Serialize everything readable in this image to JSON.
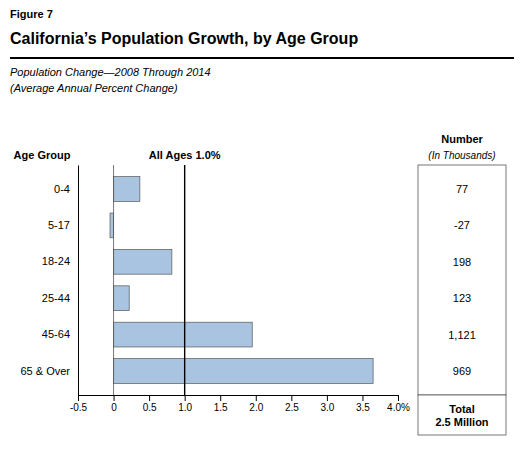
{
  "chart_data": {
    "type": "bar",
    "orientation": "horizontal",
    "figure_label": "Figure 7",
    "title": "California’s Population Growth, by Age Group",
    "subtitle": [
      "Population Change—2008 Through 2014",
      "(Average Annual Percent Change)"
    ],
    "y_label": "Age Group",
    "categories": [
      "0-4",
      "5-17",
      "18-24",
      "25-44",
      "45-64",
      "65 & Over"
    ],
    "values": [
      0.37,
      -0.05,
      0.82,
      0.22,
      1.95,
      3.65
    ],
    "color": "#a8c4e0",
    "xlim": [
      -0.5,
      4.0
    ],
    "xticks": [
      -0.5,
      0,
      0.5,
      {
        "value": 1.0,
        "label": "1.0"
      },
      1.5,
      {
        "value": 2.0,
        "label": "2.0"
      },
      2.5,
      {
        "value": 3.0,
        "label": "3.0"
      },
      3.5,
      {
        "value": 4.0,
        "label": "4.0%"
      }
    ],
    "grid": false,
    "reference_line": {
      "value": 1.0,
      "label": "All Ages 1.0%"
    },
    "number_column": {
      "header": "Number",
      "subheader": "(In Thousands)",
      "labels": [
        "77",
        "-27",
        "198",
        "123",
        "1,121",
        "969"
      ],
      "total": [
        "Total",
        "2.5 Million"
      ]
    }
  }
}
